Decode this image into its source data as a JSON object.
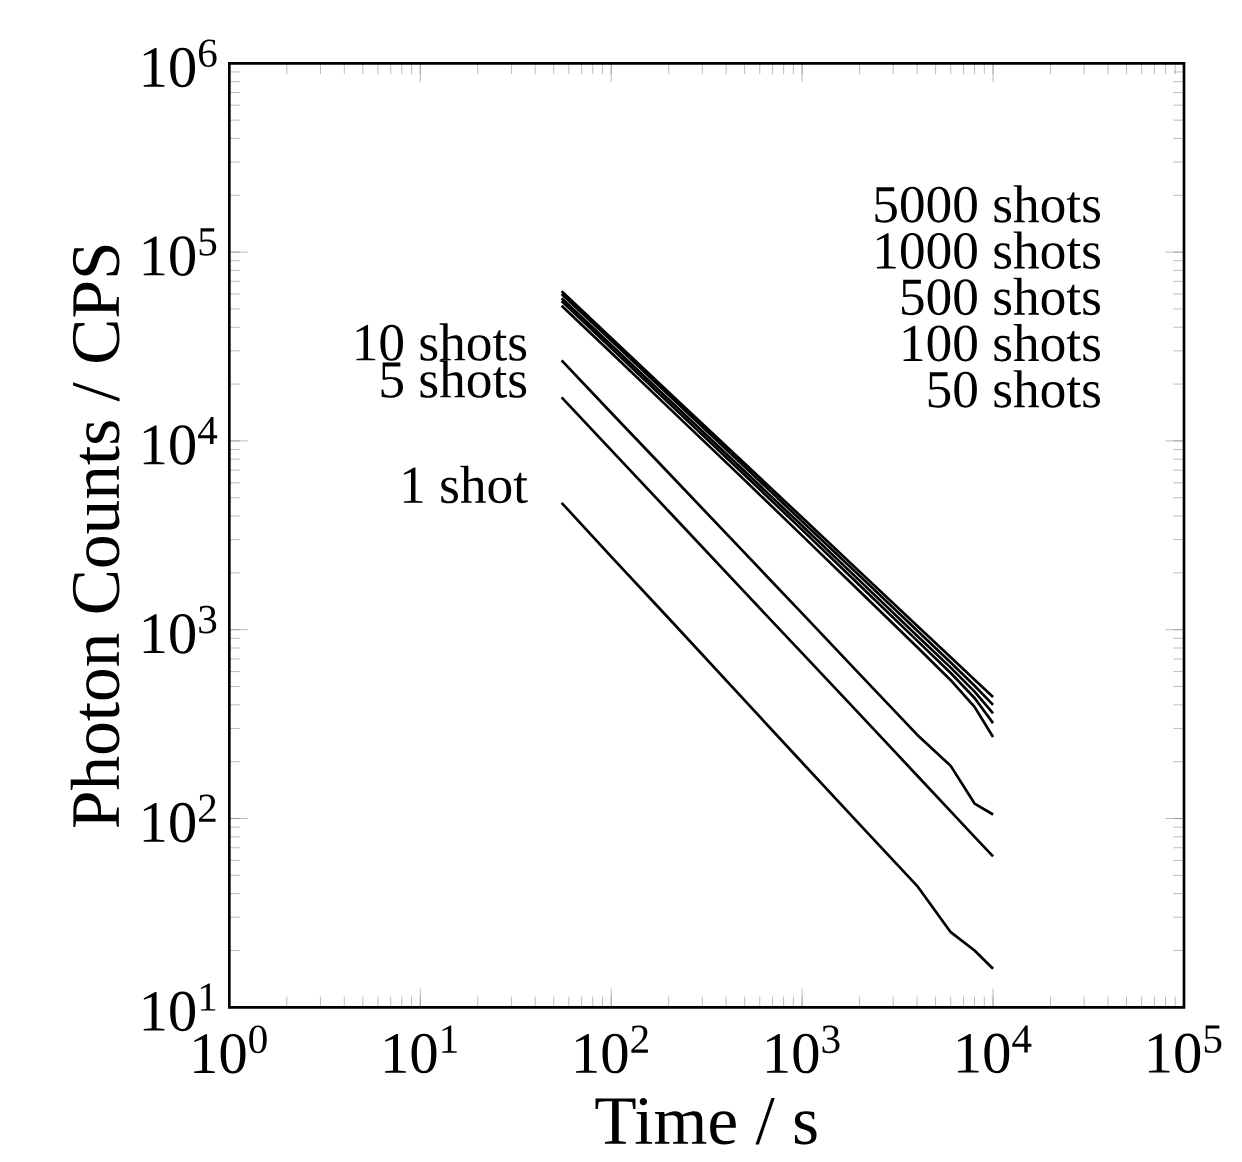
{
  "chart_data": {
    "type": "line",
    "xlabel": "Time / s",
    "ylabel": "Photon Counts / CPS",
    "log": "xy",
    "line_style": "solid",
    "xlim": [
      1,
      100000
    ],
    "ylim": [
      10,
      1000000
    ],
    "xticks": [
      {
        "value": 1,
        "label": "10$^{0}$"
      },
      {
        "value": 10,
        "label": "10$^{1}$"
      },
      {
        "value": 100,
        "label": "10$^{2}$"
      },
      {
        "value": 1000,
        "label": "10$^{3}$"
      },
      {
        "value": 10000,
        "label": "10$^{4}$"
      },
      {
        "value": 100000,
        "label": "10$^{5}$"
      }
    ],
    "yticks": [
      {
        "value": 10,
        "label": "10$^{1}$"
      },
      {
        "value": 100,
        "label": "10$^{2}$"
      },
      {
        "value": 1000,
        "label": "10$^{3}$"
      },
      {
        "value": 10000,
        "label": "10$^{4}$"
      },
      {
        "value": 100000,
        "label": "10$^{5}$"
      },
      {
        "value": 1000000,
        "label": "10$^{6}$"
      }
    ],
    "x": [
      55,
      100,
      200,
      500,
      1000,
      2000,
      4000,
      6000,
      8000,
      10000
    ],
    "series": [
      {
        "name": "1 shot",
        "color": "#000000",
        "values": [
          4700,
          2440,
          1150,
          422,
          198,
          93,
          44,
          25,
          20,
          16
        ]
      },
      {
        "name": "5 shots",
        "color": "#000000",
        "values": [
          17000,
          8930,
          4240,
          1580,
          752,
          357,
          169,
          109,
          80,
          63
        ]
      },
      {
        "name": "10 shots",
        "color": "#000000",
        "values": [
          26700,
          14100,
          6760,
          2550,
          1220,
          582,
          278,
          190,
          120,
          105
        ]
      },
      {
        "color": "#000000",
        "values": [
          52000,
          29300,
          15000,
          6200,
          3150,
          1600,
          810,
          540,
          390,
          270
        ]
      },
      {
        "color": "#000000",
        "values": [
          55000,
          31000,
          15900,
          6600,
          3380,
          1720,
          875,
          590,
          435,
          320
        ]
      },
      {
        "color": "#000000",
        "values": [
          57000,
          32200,
          16600,
          6900,
          3550,
          1820,
          930,
          630,
          470,
          360
        ]
      },
      {
        "color": "#000000",
        "values": [
          60000,
          34000,
          17500,
          7300,
          3750,
          1930,
          990,
          670,
          505,
          400
        ]
      },
      {
        "color": "#000000",
        "values": [
          62000,
          35100,
          18100,
          7590,
          3930,
          2030,
          1050,
          714,
          543,
          440
        ]
      }
    ],
    "annotations": [
      "5000 shots",
      "1000 shots",
      "500 shots",
      "100 shots",
      "50 shots"
    ]
  }
}
